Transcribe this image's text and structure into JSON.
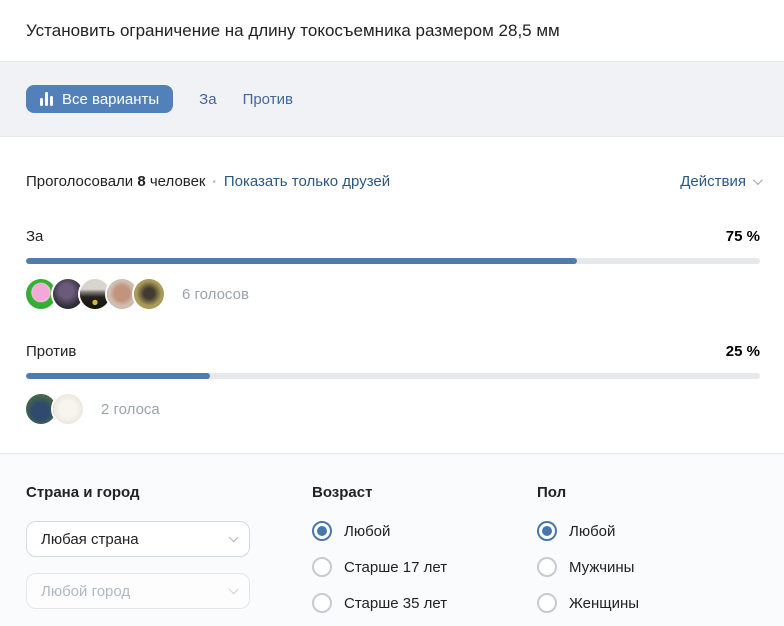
{
  "page": {
    "title": "Установить ограничение на длину токосъемника размером 28,5 мм"
  },
  "tabs": {
    "all_label": "Все варианты",
    "for_label": "За",
    "against_label": "Против"
  },
  "summary": {
    "voted_prefix": "Проголосовали",
    "voted_count": "8",
    "voted_suffix": "человек",
    "separator": "·",
    "friends_link": "Показать только друзей",
    "actions_label": "Действия"
  },
  "chart_data": {
    "type": "bar",
    "categories": [
      "За",
      "Против"
    ],
    "values": [
      75,
      25
    ],
    "title": "Установить ограничение на длину токосъемника размером 28,5 мм",
    "xlabel": "",
    "ylabel": "",
    "ylim": [
      0,
      100
    ],
    "total_votes": 8,
    "vote_counts": [
      6,
      2
    ]
  },
  "options": {
    "for": {
      "label": "За",
      "percent": "75 %",
      "percent_value": 75,
      "votes": "6 голосов",
      "avatar_count": 5
    },
    "against": {
      "label": "Против",
      "percent": "25 %",
      "percent_value": 25,
      "votes": "2 голоса",
      "avatar_count": 2
    }
  },
  "filters": {
    "location": {
      "heading": "Страна и город",
      "country_value": "Любая страна",
      "city_value": "Любой город"
    },
    "age": {
      "heading": "Возраст",
      "options": [
        "Любой",
        "Старше 17 лет",
        "Старше 35 лет"
      ],
      "selected": "Любой"
    },
    "gender": {
      "heading": "Пол",
      "options": [
        "Любой",
        "Мужчины",
        "Женщины"
      ],
      "selected": "Любой"
    }
  },
  "colors": {
    "accent_blue": "#5181b8",
    "bar_blue": "#4e7cae",
    "link_blue": "#2a5885",
    "track_gray": "#e7e8ec",
    "strip_gray": "#f0f2f5"
  }
}
